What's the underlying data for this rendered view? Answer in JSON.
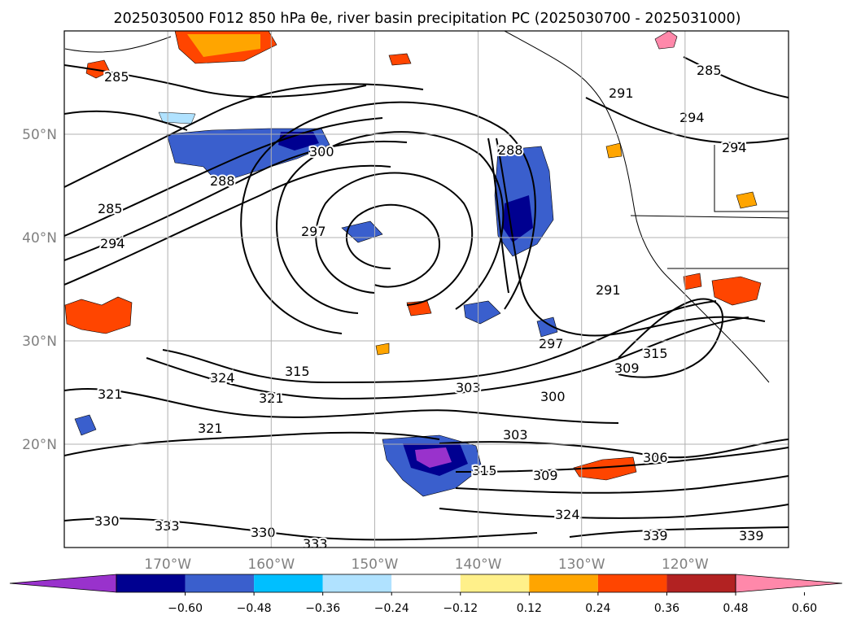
{
  "title": "2025030500 F012 850 hPa θe, river basin precipitation PC (2025030700 - 2025031000)",
  "map": {
    "lon_range": [
      -180,
      -110
    ],
    "lat_range": [
      10,
      60
    ],
    "lat_ticks": [
      {
        "value": 50,
        "label": "50°N"
      },
      {
        "value": 40,
        "label": "40°N"
      },
      {
        "value": 30,
        "label": "30°N"
      },
      {
        "value": 20,
        "label": "20°N"
      }
    ],
    "lon_ticks": [
      {
        "value": -170,
        "label": "170°W"
      },
      {
        "value": -160,
        "label": "160°W"
      },
      {
        "value": -150,
        "label": "150°W"
      },
      {
        "value": -140,
        "label": "140°W"
      },
      {
        "value": -130,
        "label": "130°W"
      },
      {
        "value": -120,
        "label": "120°W"
      }
    ],
    "grid": true
  },
  "chart_data": {
    "type": "heatmap",
    "title": "2025030500 F012 850 hPa θe, river basin precipitation PC (2025030700 - 2025031000)",
    "variable_contours": "850 hPa θe",
    "variable_fill": "river basin precipitation PC",
    "contour_labels": [
      "285",
      "288",
      "291",
      "294",
      "297",
      "300",
      "303",
      "306",
      "309",
      "315",
      "321",
      "324",
      "330",
      "333",
      "339"
    ],
    "colorbar": {
      "ticks": [
        "−0.60",
        "−0.48",
        "−0.36",
        "−0.24",
        "−0.12",
        "0.12",
        "0.24",
        "0.36",
        "0.48",
        "0.60"
      ],
      "extend": "both",
      "colors": [
        "#9932cc",
        "#000090",
        "#3a5fcd",
        "#00bfff",
        "#b0e2ff",
        "#ffffff",
        "#fff08a",
        "#ffa500",
        "#ff4500",
        "#b22222",
        "#ff88aa"
      ]
    }
  }
}
